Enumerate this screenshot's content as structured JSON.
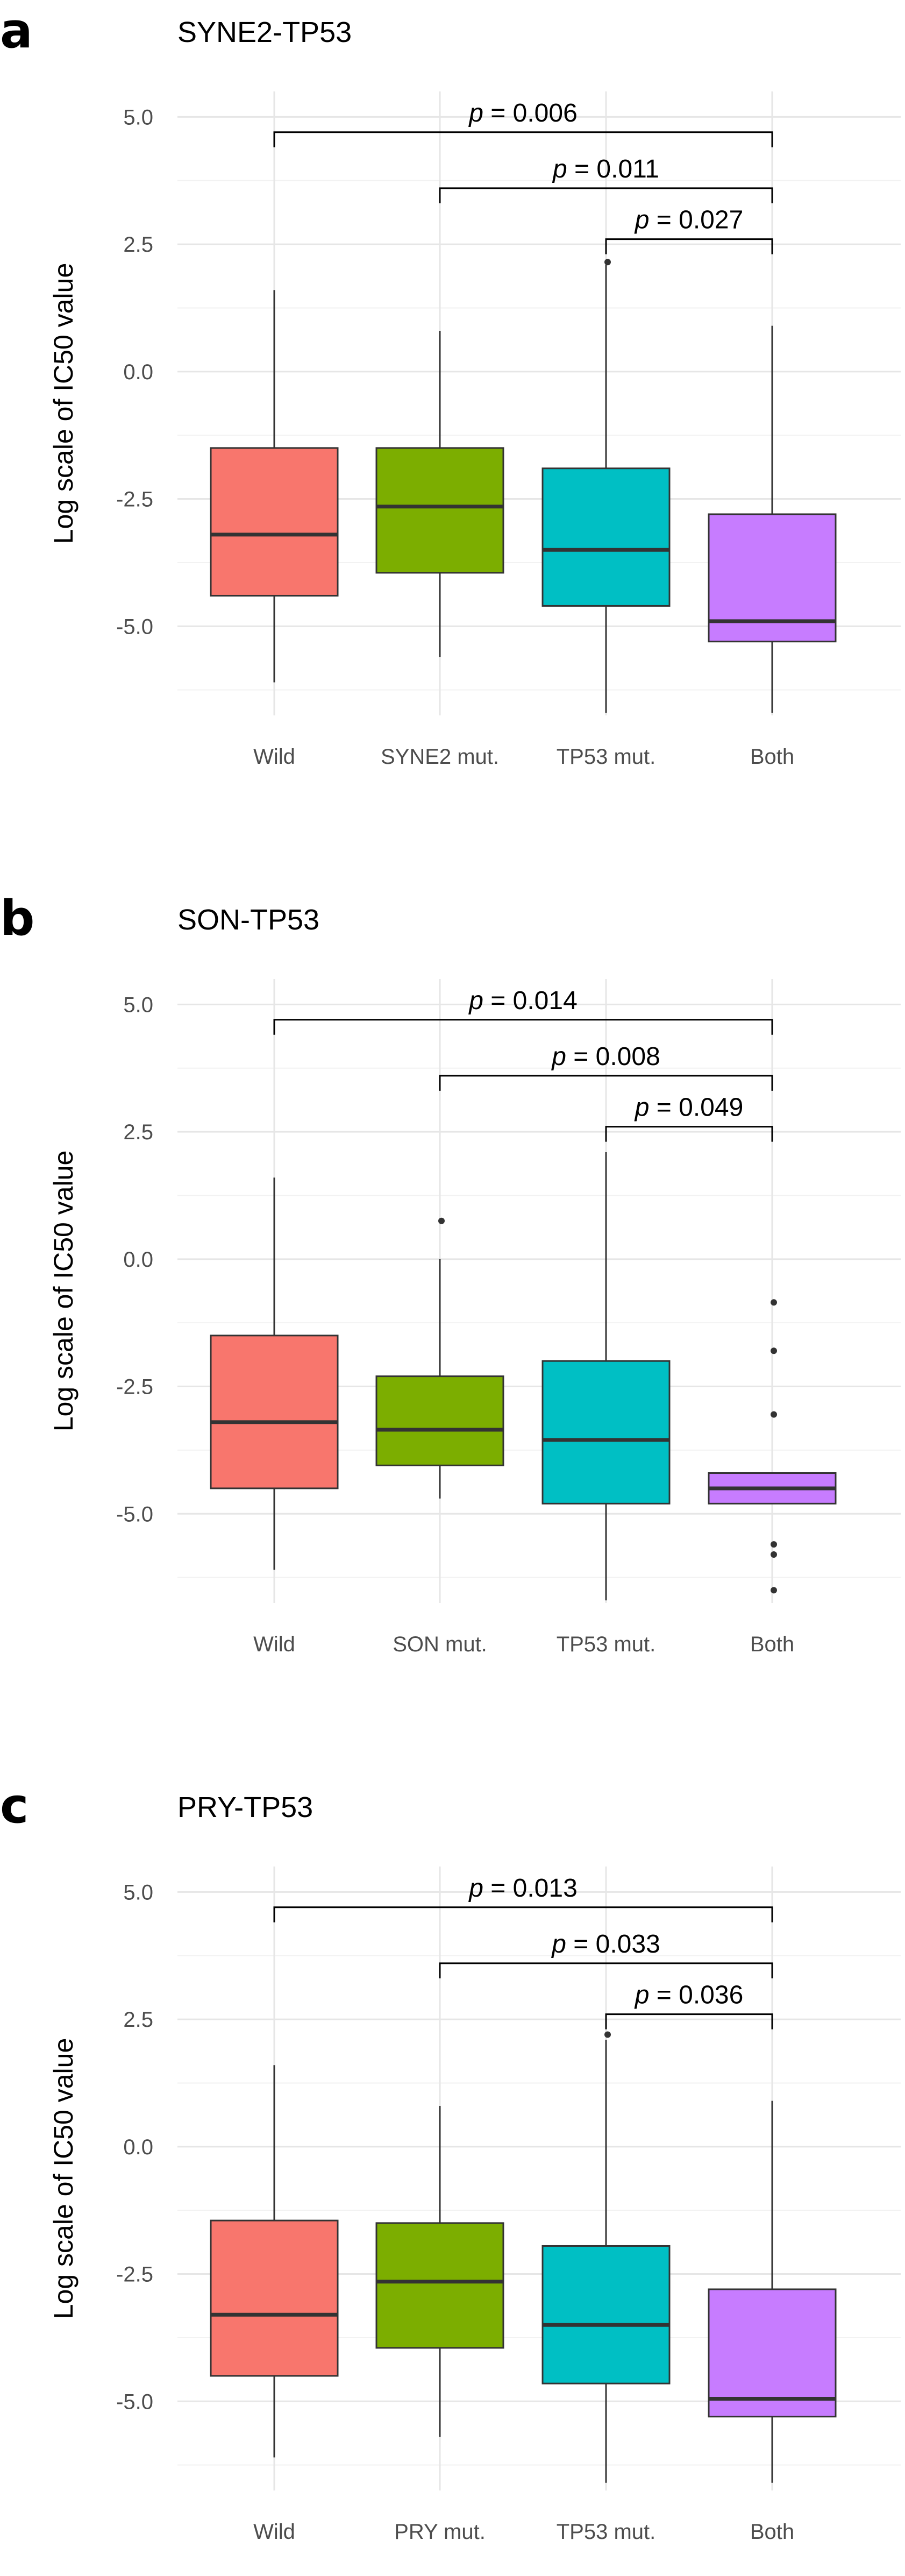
{
  "chart_data": [
    {
      "type": "box",
      "panel_label": "a",
      "title": "SYNE2-TP53",
      "xlabel": "",
      "ylabel": "Log scale of IC50 value",
      "ylim": [
        -6.75,
        5.5
      ],
      "yticks": [
        5.0,
        2.5,
        0.0,
        -2.5,
        -5.0
      ],
      "ytick_labels": [
        "5.0",
        "2.5",
        "0.0",
        "-2.5",
        "-5.0"
      ],
      "grid": true,
      "categories": [
        "Wild",
        "SYNE2 mut.",
        "TP53 mut.",
        "Both"
      ],
      "colors": [
        "#f8766d",
        "#7cae00",
        "#00bfc4",
        "#c77cff"
      ],
      "boxes": [
        {
          "whisker_low": -6.1,
          "q1": -4.4,
          "median": -3.2,
          "q3": -1.5,
          "whisker_high": 1.6,
          "outliers": []
        },
        {
          "whisker_low": -5.6,
          "q1": -3.95,
          "median": -2.65,
          "q3": -1.5,
          "whisker_high": 0.8,
          "outliers": []
        },
        {
          "whisker_low": -6.7,
          "q1": -4.6,
          "median": -3.5,
          "q3": -1.9,
          "whisker_high": 2.1,
          "outliers": [
            2.15
          ]
        },
        {
          "whisker_low": -6.7,
          "q1": -5.3,
          "median": -4.9,
          "q3": -2.8,
          "whisker_high": 0.9,
          "outliers": []
        }
      ],
      "comparisons": [
        {
          "from": 0,
          "to": 3,
          "y": 4.7,
          "label": "0.006"
        },
        {
          "from": 1,
          "to": 3,
          "y": 3.6,
          "label": "0.011"
        },
        {
          "from": 2,
          "to": 3,
          "y": 2.6,
          "label": "0.027"
        }
      ]
    },
    {
      "type": "box",
      "panel_label": "b",
      "title": "SON-TP53",
      "xlabel": "",
      "ylabel": "Log scale of IC50 value",
      "ylim": [
        -6.75,
        5.5
      ],
      "yticks": [
        5.0,
        2.5,
        0.0,
        -2.5,
        -5.0
      ],
      "ytick_labels": [
        "5.0",
        "2.5",
        "0.0",
        "-2.5",
        "-5.0"
      ],
      "grid": true,
      "categories": [
        "Wild",
        "SON mut.",
        "TP53 mut.",
        "Both"
      ],
      "colors": [
        "#f8766d",
        "#7cae00",
        "#00bfc4",
        "#c77cff"
      ],
      "boxes": [
        {
          "whisker_low": -6.1,
          "q1": -4.5,
          "median": -3.2,
          "q3": -1.5,
          "whisker_high": 1.6,
          "outliers": []
        },
        {
          "whisker_low": -4.7,
          "q1": -4.05,
          "median": -3.35,
          "q3": -2.3,
          "whisker_high": 0.0,
          "outliers": [
            0.75
          ]
        },
        {
          "whisker_low": -6.7,
          "q1": -4.8,
          "median": -3.55,
          "q3": -2.0,
          "whisker_high": 2.1,
          "outliers": []
        },
        {
          "whisker_low": -4.8,
          "q1": -4.8,
          "median": -4.5,
          "q3": -4.2,
          "whisker_high": -4.2,
          "outliers": [
            -0.85,
            -1.8,
            -3.05,
            -5.6,
            -5.8,
            -6.5
          ]
        }
      ],
      "comparisons": [
        {
          "from": 0,
          "to": 3,
          "y": 4.7,
          "label": "0.014"
        },
        {
          "from": 1,
          "to": 3,
          "y": 3.6,
          "label": "0.008"
        },
        {
          "from": 2,
          "to": 3,
          "y": 2.6,
          "label": "0.049"
        }
      ]
    },
    {
      "type": "box",
      "panel_label": "c",
      "title": "PRY-TP53",
      "xlabel": "",
      "ylabel": "Log scale of IC50 value",
      "ylim": [
        -6.75,
        5.5
      ],
      "yticks": [
        5.0,
        2.5,
        0.0,
        -2.5,
        -5.0
      ],
      "ytick_labels": [
        "5.0",
        "2.5",
        "0.0",
        "-2.5",
        "-5.0"
      ],
      "grid": true,
      "categories": [
        "Wild",
        "PRY mut.",
        "TP53 mut.",
        "Both"
      ],
      "colors": [
        "#f8766d",
        "#7cae00",
        "#00bfc4",
        "#c77cff"
      ],
      "boxes": [
        {
          "whisker_low": -6.1,
          "q1": -4.5,
          "median": -3.3,
          "q3": -1.45,
          "whisker_high": 1.6,
          "outliers": []
        },
        {
          "whisker_low": -5.7,
          "q1": -3.95,
          "median": -2.65,
          "q3": -1.5,
          "whisker_high": 0.8,
          "outliers": []
        },
        {
          "whisker_low": -6.6,
          "q1": -4.65,
          "median": -3.5,
          "q3": -1.95,
          "whisker_high": 2.1,
          "outliers": [
            2.2
          ]
        },
        {
          "whisker_low": -6.6,
          "q1": -5.3,
          "median": -4.95,
          "q3": -2.8,
          "whisker_high": 0.9,
          "outliers": []
        }
      ],
      "comparisons": [
        {
          "from": 0,
          "to": 3,
          "y": 4.7,
          "label": "0.013"
        },
        {
          "from": 1,
          "to": 3,
          "y": 3.6,
          "label": "0.033"
        },
        {
          "from": 2,
          "to": 3,
          "y": 2.6,
          "label": "0.036"
        }
      ]
    }
  ],
  "pvalue_prefix": "p",
  "pvalue_equals": " = "
}
